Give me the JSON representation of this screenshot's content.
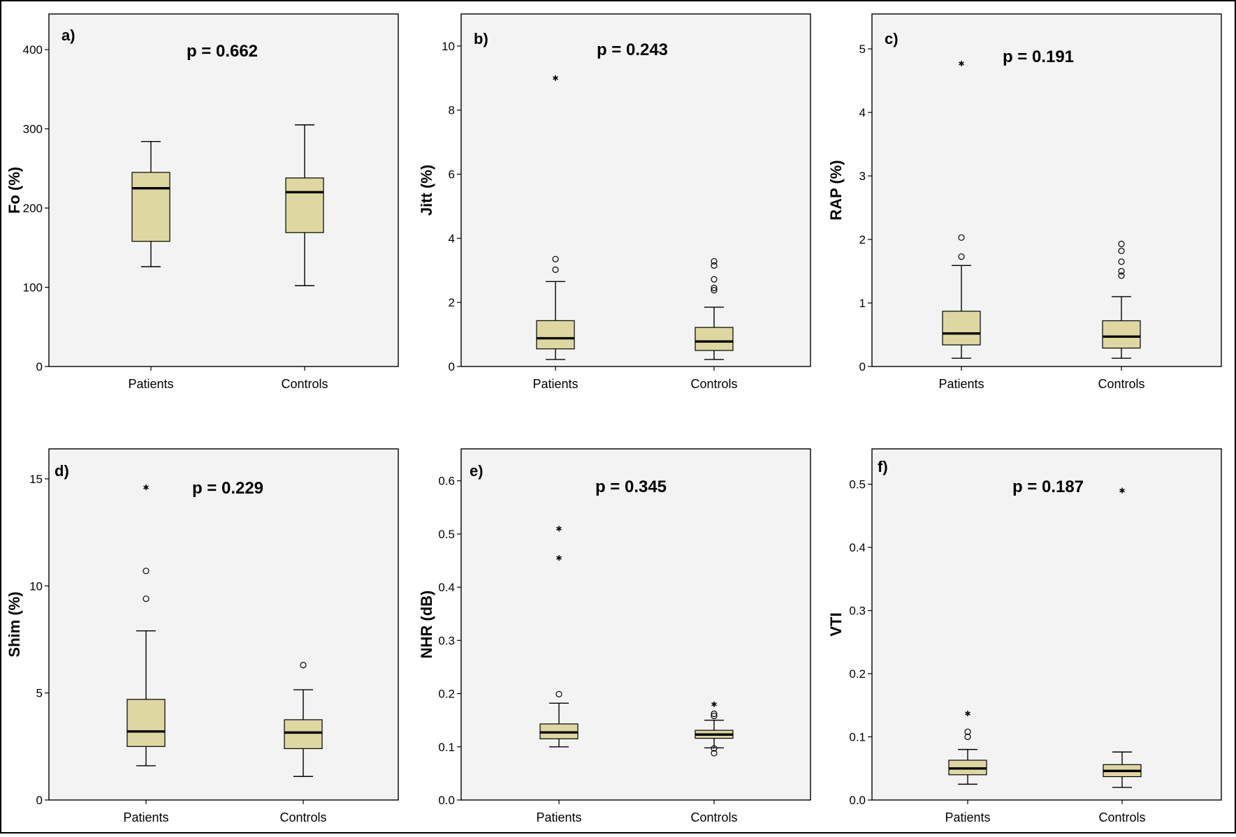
{
  "chart_data": [
    {
      "type": "box",
      "panel_label": "a)",
      "annotation": "p = 0.662",
      "ylabel": "Fo (%)",
      "categories": [
        "Patients",
        "Controls"
      ],
      "yticks": [
        "0",
        "100",
        "200",
        "300",
        "400"
      ],
      "ylim": [
        0,
        445
      ],
      "boxes": [
        {
          "category": "Patients",
          "whisker_low": 126,
          "q1": 158,
          "median": 225,
          "q3": 245,
          "whisker_high": 284,
          "outliers": [],
          "extremes": []
        },
        {
          "category": "Controls",
          "whisker_low": 102,
          "q1": 169,
          "median": 220,
          "q3": 238,
          "whisker_high": 305,
          "outliers": [],
          "extremes": []
        }
      ]
    },
    {
      "type": "box",
      "panel_label": "b)",
      "annotation": "p = 0.243",
      "ylabel": "Jitt (%)",
      "categories": [
        "Patients",
        "Controls"
      ],
      "yticks": [
        "0",
        "2",
        "4",
        "6",
        "8",
        "10"
      ],
      "ylim": [
        0,
        11
      ],
      "boxes": [
        {
          "category": "Patients",
          "whisker_low": 0.22,
          "q1": 0.55,
          "median": 0.88,
          "q3": 1.43,
          "whisker_high": 2.65,
          "outliers": [
            3.02,
            3.35
          ],
          "extremes": [
            9.0
          ]
        },
        {
          "category": "Controls",
          "whisker_low": 0.22,
          "q1": 0.5,
          "median": 0.78,
          "q3": 1.22,
          "whisker_high": 1.85,
          "outliers": [
            2.38,
            2.45,
            2.72,
            3.15,
            3.28
          ],
          "extremes": []
        }
      ]
    },
    {
      "type": "box",
      "panel_label": "c)",
      "annotation": "p = 0.191",
      "ylabel": "RAP (%)",
      "categories": [
        "Patients",
        "Controls"
      ],
      "yticks": [
        "0",
        "1",
        "2",
        "3",
        "4",
        "5"
      ],
      "ylim": [
        0,
        5.55
      ],
      "boxes": [
        {
          "category": "Patients",
          "whisker_low": 0.13,
          "q1": 0.34,
          "median": 0.52,
          "q3": 0.87,
          "whisker_high": 1.59,
          "outliers": [
            1.73,
            2.03
          ],
          "extremes": [
            4.77
          ]
        },
        {
          "category": "Controls",
          "whisker_low": 0.13,
          "q1": 0.29,
          "median": 0.47,
          "q3": 0.72,
          "whisker_high": 1.1,
          "outliers": [
            1.43,
            1.5,
            1.65,
            1.82,
            1.93
          ],
          "extremes": []
        }
      ]
    },
    {
      "type": "box",
      "panel_label": "d)",
      "annotation": "p = 0.229",
      "ylabel": "Shim (%)",
      "categories": [
        "Patients",
        "Controls"
      ],
      "yticks": [
        "0",
        "5",
        "10",
        "15"
      ],
      "ylim": [
        0,
        16.4
      ],
      "boxes": [
        {
          "category": "Patients",
          "whisker_low": 1.6,
          "q1": 2.5,
          "median": 3.2,
          "q3": 4.7,
          "whisker_high": 7.9,
          "outliers": [
            9.4,
            10.7
          ],
          "extremes": [
            14.6
          ]
        },
        {
          "category": "Controls",
          "whisker_low": 1.1,
          "q1": 2.4,
          "median": 3.15,
          "q3": 3.75,
          "whisker_high": 5.15,
          "outliers": [
            6.3
          ],
          "extremes": []
        }
      ]
    },
    {
      "type": "box",
      "panel_label": "e)",
      "annotation": "p = 0.345",
      "ylabel": "NHR (dB)",
      "categories": [
        "Patients",
        "Controls"
      ],
      "yticks": [
        "0.0",
        "0.1",
        "0.2",
        "0.3",
        "0.4",
        "0.5",
        "0.6"
      ],
      "ylim": [
        0,
        0.66
      ],
      "boxes": [
        {
          "category": "Patients",
          "whisker_low": 0.1,
          "q1": 0.115,
          "median": 0.127,
          "q3": 0.143,
          "whisker_high": 0.182,
          "outliers": [
            0.199
          ],
          "extremes": [
            0.455,
            0.51
          ]
        },
        {
          "category": "Controls",
          "whisker_low": 0.098,
          "q1": 0.116,
          "median": 0.123,
          "q3": 0.131,
          "whisker_high": 0.15,
          "outliers": [
            0.088,
            0.097,
            0.158,
            0.162
          ],
          "extremes": [
            0.18
          ]
        }
      ]
    },
    {
      "type": "box",
      "panel_label": "f)",
      "annotation": "p = 0.187",
      "ylabel": "VTI",
      "categories": [
        "Patients",
        "Controls"
      ],
      "yticks": [
        "0.0",
        "0.1",
        "0.2",
        "0.3",
        "0.4",
        "0.5"
      ],
      "ylim": [
        0,
        0.556
      ],
      "boxes": [
        {
          "category": "Patients",
          "whisker_low": 0.025,
          "q1": 0.04,
          "median": 0.05,
          "q3": 0.063,
          "whisker_high": 0.08,
          "outliers": [
            0.1,
            0.108
          ],
          "extremes": [
            0.137
          ]
        },
        {
          "category": "Controls",
          "whisker_low": 0.02,
          "q1": 0.037,
          "median": 0.046,
          "q3": 0.056,
          "whisker_high": 0.076,
          "outliers": [],
          "extremes": [
            0.49
          ]
        }
      ]
    }
  ]
}
